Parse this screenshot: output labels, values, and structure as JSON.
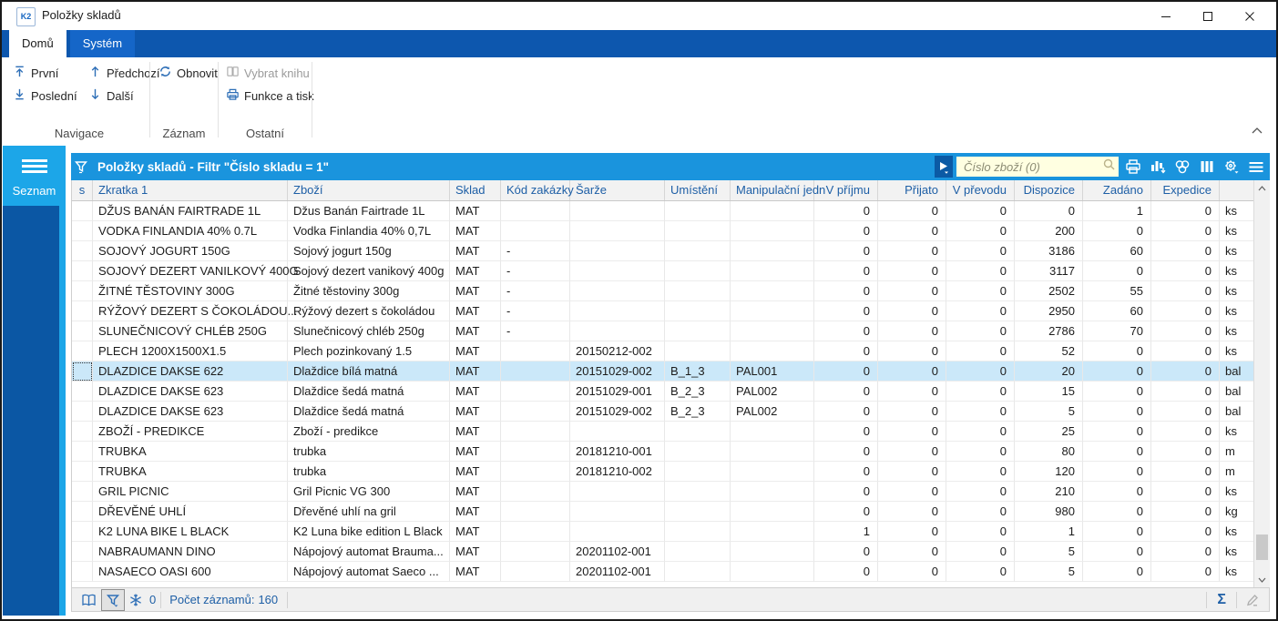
{
  "window": {
    "title": "Položky skladů",
    "logo_text": "K2",
    "controls": [
      "minimize-icon",
      "maximize-icon",
      "close-icon"
    ]
  },
  "ribbon": {
    "tabs": [
      {
        "label": "Domů",
        "active": true
      },
      {
        "label": "Systém",
        "active": false
      }
    ],
    "groups": [
      {
        "label": "Navigace",
        "buttons": [
          {
            "label": "První",
            "icon": "first-arrow-icon"
          },
          {
            "label": "Poslední",
            "icon": "last-arrow-icon"
          },
          {
            "label": "Předchozí",
            "icon": "up-arrow-icon"
          },
          {
            "label": "Další",
            "icon": "down-arrow-icon"
          }
        ]
      },
      {
        "label": "Záznam",
        "buttons": [
          {
            "label": "Obnovit",
            "icon": "refresh-icon"
          }
        ]
      },
      {
        "label": "Ostatní",
        "buttons": [
          {
            "label": "Vybrat knihu",
            "icon": "book-icon",
            "disabled": true
          },
          {
            "label": "Funkce a tisk",
            "icon": "printer-icon"
          }
        ]
      }
    ]
  },
  "sidebar": {
    "label": "Seznam",
    "icon": "hamburger-icon"
  },
  "panel": {
    "title": "Položky skladů - Filtr \"Číslo skladu = 1\"",
    "title_icon": "filter-funnel-icon",
    "search": {
      "placeholder": "Číslo zboží (0)",
      "value": "",
      "icon": "search-icon"
    },
    "nav_button_icon": "play-arrow-icon",
    "toolbar_icons": [
      "printer-icon",
      "chart-icon",
      "circles-icon",
      "columns-icon",
      "settings-gear-icon",
      "menu-icon"
    ]
  },
  "table": {
    "columns": [
      "s",
      "Zkratka 1",
      "Zboží",
      "Sklad",
      "Kód zakázky",
      "Šarže",
      "Umístění",
      "Manipulační jedn",
      "V příjmu",
      "Přijato",
      "V převodu",
      "Dispozice",
      "Zadáno",
      "Expedice",
      ""
    ],
    "selected_row_index": 8,
    "rows": [
      [
        "",
        "DŽUS BANÁN FAIRTRADE 1L",
        "Džus Banán Fairtrade 1L",
        "MAT",
        "",
        "",
        "",
        "",
        "0",
        "0",
        "0",
        "0",
        "1",
        "0",
        "ks"
      ],
      [
        "",
        "VODKA FINLANDIA 40% 0.7L",
        "Vodka Finlandia 40% 0,7L",
        "MAT",
        "",
        "",
        "",
        "",
        "0",
        "0",
        "0",
        "200",
        "0",
        "0",
        "ks"
      ],
      [
        "",
        "SOJOVÝ JOGURT 150G",
        "Sojový jogurt 150g",
        "MAT",
        "-",
        "",
        "",
        "",
        "0",
        "0",
        "0",
        "3186",
        "60",
        "0",
        "ks"
      ],
      [
        "",
        "SOJOVÝ DEZERT VANILKOVÝ 400G",
        "Sojový dezert vanikový 400g",
        "MAT",
        "-",
        "",
        "",
        "",
        "0",
        "0",
        "0",
        "3117",
        "0",
        "0",
        "ks"
      ],
      [
        "",
        "ŽITNÉ TĚSTOVINY 300G",
        "Žitné těstoviny 300g",
        "MAT",
        "-",
        "",
        "",
        "",
        "0",
        "0",
        "0",
        "2502",
        "55",
        "0",
        "ks"
      ],
      [
        "",
        "RÝŽOVÝ DEZERT S ČOKOLÁDOU...",
        "Rýžový dezert s čokoládou",
        "MAT",
        "-",
        "",
        "",
        "",
        "0",
        "0",
        "0",
        "2950",
        "60",
        "0",
        "ks"
      ],
      [
        "",
        "SLUNEČNICOVÝ CHLÉB 250G",
        "Slunečnicový chléb 250g",
        "MAT",
        "-",
        "",
        "",
        "",
        "0",
        "0",
        "0",
        "2786",
        "70",
        "0",
        "ks"
      ],
      [
        "",
        "PLECH 1200X1500X1.5",
        "Plech pozinkovaný 1.5",
        "MAT",
        "",
        "20150212-002",
        "",
        "",
        "0",
        "0",
        "0",
        "52",
        "0",
        "0",
        "ks"
      ],
      [
        "",
        "DLAZDICE DAKSE 622",
        "Dlaždice bílá matná",
        "MAT",
        "",
        "20151029-002",
        "B_1_3",
        "PAL001",
        "0",
        "0",
        "0",
        "20",
        "0",
        "0",
        "bal"
      ],
      [
        "",
        "DLAZDICE DAKSE 623",
        "Dlaždice šedá matná",
        "MAT",
        "",
        "20151029-001",
        "B_2_3",
        "PAL002",
        "0",
        "0",
        "0",
        "15",
        "0",
        "0",
        "bal"
      ],
      [
        "",
        "DLAZDICE DAKSE 623",
        "Dlaždice šedá matná",
        "MAT",
        "",
        "20151029-002",
        "B_2_3",
        "PAL002",
        "0",
        "0",
        "0",
        "5",
        "0",
        "0",
        "bal"
      ],
      [
        "",
        "ZBOŽÍ - PREDIKCE",
        "Zboží - predikce",
        "MAT",
        "",
        "",
        "",
        "",
        "0",
        "0",
        "0",
        "25",
        "0",
        "0",
        "ks"
      ],
      [
        "",
        "TRUBKA",
        "trubka",
        "MAT",
        "",
        "20181210-001",
        "",
        "",
        "0",
        "0",
        "0",
        "80",
        "0",
        "0",
        "m"
      ],
      [
        "",
        "TRUBKA",
        "trubka",
        "MAT",
        "",
        "20181210-002",
        "",
        "",
        "0",
        "0",
        "0",
        "120",
        "0",
        "0",
        "m"
      ],
      [
        "",
        "GRIL PICNIC",
        "Gril Picnic VG 300",
        "MAT",
        "",
        "",
        "",
        "",
        "0",
        "0",
        "0",
        "210",
        "0",
        "0",
        "ks"
      ],
      [
        "",
        "DŘEVĚNÉ UHLÍ",
        "Dřevěné uhlí na gril",
        "MAT",
        "",
        "",
        "",
        "",
        "0",
        "0",
        "0",
        "980",
        "0",
        "0",
        "kg"
      ],
      [
        "",
        "K2 LUNA BIKE L BLACK",
        "K2 Luna bike edition L Black",
        "MAT",
        "",
        "",
        "",
        "",
        "1",
        "0",
        "0",
        "1",
        "0",
        "0",
        "ks"
      ],
      [
        "",
        "NABRAUMANN DINO",
        "Nápojový automat Brauma...",
        "MAT",
        "",
        "20201102-001",
        "",
        "",
        "0",
        "0",
        "0",
        "5",
        "0",
        "0",
        "ks"
      ],
      [
        "",
        "NASAECO OASI 600",
        "Nápojový automat Saeco ...",
        "MAT",
        "",
        "20201102-001",
        "",
        "",
        "0",
        "0",
        "0",
        "5",
        "0",
        "0",
        "ks"
      ]
    ]
  },
  "statusbar": {
    "icons": [
      "book-icon",
      "filter-funnel-icon",
      "snowflake-icon"
    ],
    "frozen_count": "0",
    "record_count_label": "Počet záznamů:",
    "record_count": "160",
    "sum_symbol": "Σ",
    "right_icons": [
      "sigma-icon",
      "pencil-icon"
    ]
  },
  "colors": {
    "ribbon_strip": "#0d57ae",
    "inactive_tab": "#1566c8",
    "panel_header": "#1a94dd",
    "sidebar_light": "#1ca6e8",
    "sidebar_dark": "#0b57a4",
    "selected_row": "#cbe8f9",
    "header_text": "#1e5fa6",
    "search_bg": "#ffffe1",
    "icon_blue": "#2e6fb7"
  }
}
